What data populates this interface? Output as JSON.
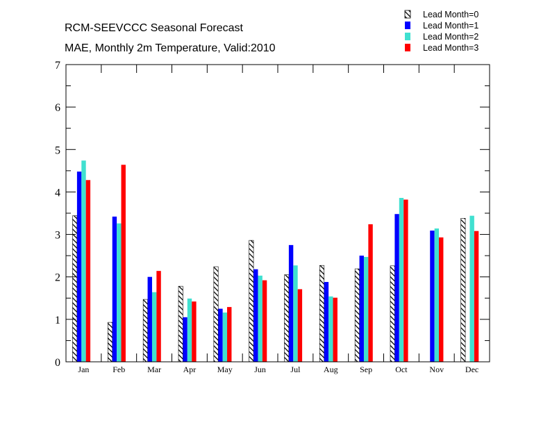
{
  "chart_data": {
    "type": "bar",
    "title": "RCM-SEEVCCC Seasonal Forecast",
    "subtitle": "MAE, Monthly 2m Temperature, Valid:2010",
    "xlabel": "",
    "ylabel": "",
    "ylim": [
      0,
      7
    ],
    "yticks": [
      "0",
      "1",
      "2",
      "3",
      "4",
      "5",
      "6",
      "7"
    ],
    "grid": false,
    "legend_position": "top-right",
    "categories": [
      "Jan",
      "Feb",
      "Mar",
      "Apr",
      "May",
      "Jun",
      "Jul",
      "Aug",
      "Sep",
      "Oct",
      "Nov",
      "Dec"
    ],
    "series": [
      {
        "name": "Lead Month=0",
        "color": "#000000",
        "pattern": "hatched",
        "values": [
          3.44,
          0.93,
          1.47,
          1.78,
          2.24,
          2.86,
          2.05,
          2.27,
          2.19,
          2.26,
          null,
          3.38
        ]
      },
      {
        "name": "Lead Month=1",
        "color": "#0000ff",
        "pattern": "solid",
        "values": [
          4.48,
          3.42,
          2.0,
          1.05,
          1.25,
          2.18,
          2.75,
          1.88,
          2.5,
          3.48,
          3.09,
          null
        ]
      },
      {
        "name": "Lead Month=2",
        "color": "#40e0d0",
        "pattern": "solid",
        "values": [
          4.74,
          3.26,
          1.64,
          1.49,
          1.16,
          2.03,
          2.27,
          1.54,
          2.47,
          3.86,
          3.14,
          3.44
        ]
      },
      {
        "name": "Lead Month=3",
        "color": "#ff0000",
        "pattern": "solid",
        "values": [
          4.28,
          4.64,
          2.14,
          1.42,
          1.29,
          1.92,
          1.71,
          1.51,
          3.24,
          3.82,
          2.93,
          3.08
        ]
      }
    ]
  }
}
